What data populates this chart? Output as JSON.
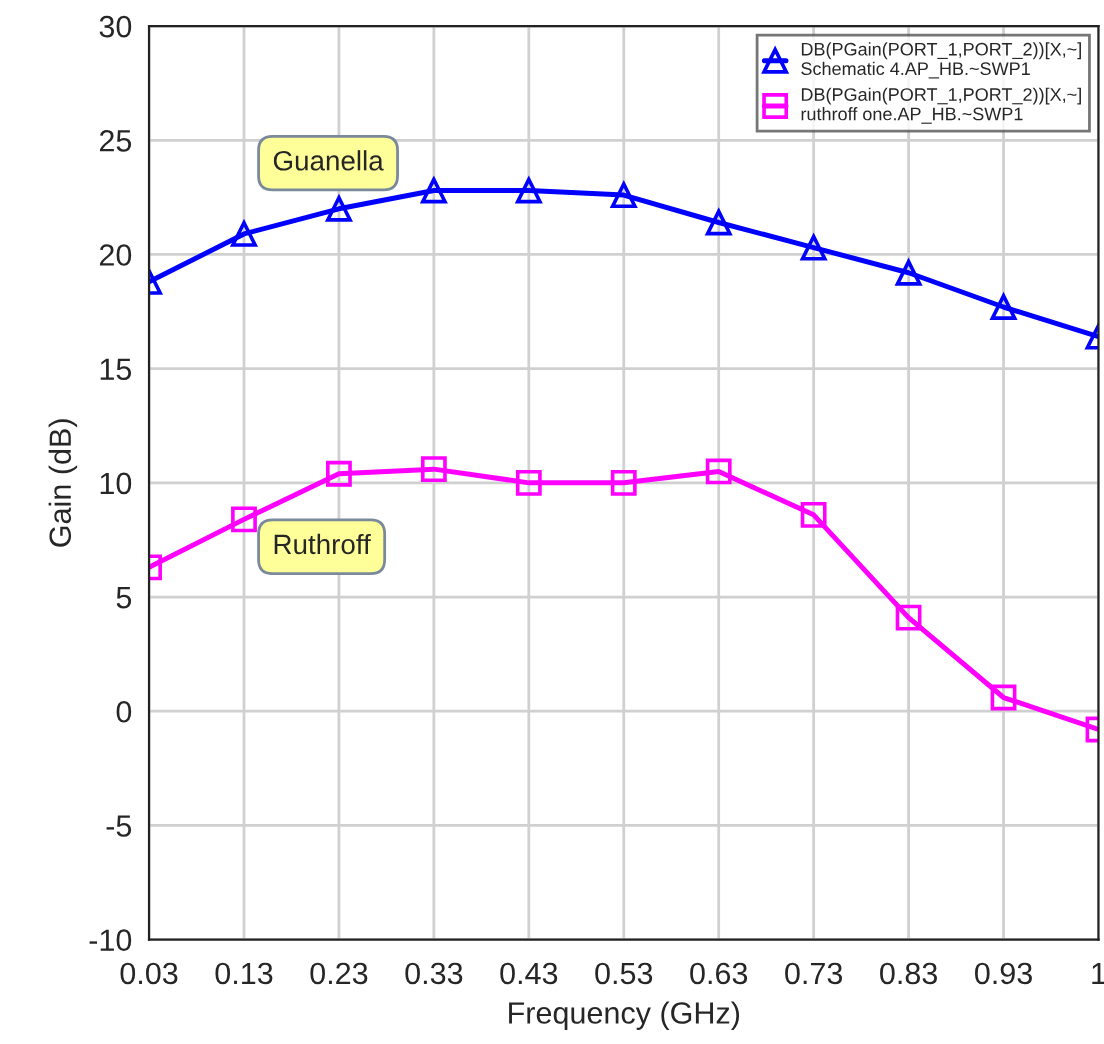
{
  "chart_data": {
    "type": "line",
    "xlabel": "Frequency (GHz)",
    "ylabel": "Gain (dB)",
    "x": [
      0.03,
      0.13,
      0.23,
      0.33,
      0.43,
      0.53,
      0.63,
      0.73,
      0.83,
      0.93,
      1.03
    ],
    "series": [
      {
        "name": "DB(PGain(PORT_1,PORT_2))[X,~]\nSchematic 4.AP_HB.~SWP1",
        "color": "#0000ff",
        "marker": "triangle",
        "values": [
          18.8,
          20.9,
          22.0,
          22.8,
          22.8,
          22.6,
          21.4,
          20.3,
          19.2,
          17.7,
          16.4
        ]
      },
      {
        "name": "DB(PGain(PORT_1,PORT_2))[X,~]\nruthroff one.AP_HB.~SWP1",
        "color": "#ff00ff",
        "marker": "square",
        "values": [
          6.3,
          8.4,
          10.4,
          10.6,
          10.0,
          10.0,
          10.5,
          8.6,
          4.1,
          0.6,
          -0.8
        ]
      }
    ],
    "xlim": [
      0.03,
      1.03
    ],
    "xticks": [
      0.03,
      0.13,
      0.23,
      0.33,
      0.43,
      0.53,
      0.63,
      0.73,
      0.83,
      0.93,
      {
        "value": 1.03,
        "label": "1"
      }
    ],
    "ylim": [
      -10,
      30
    ],
    "yticks": [
      -10,
      -5,
      0,
      5,
      10,
      15,
      20,
      25,
      30
    ],
    "annotations": [
      "Guanella",
      "Ruthroff"
    ],
    "grid": true,
    "legend": "top right",
    "line_style": "solid"
  }
}
